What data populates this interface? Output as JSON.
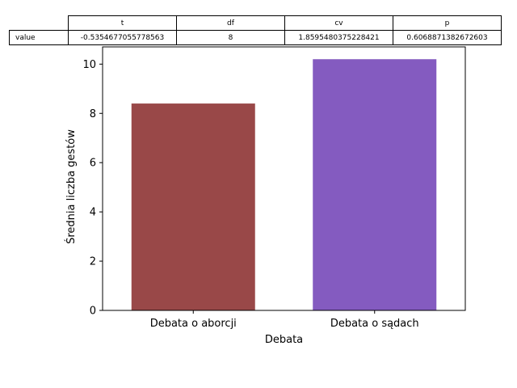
{
  "chart_data": {
    "type": "bar",
    "categories": [
      "Debata o aborcji",
      "Debata o sądach"
    ],
    "values": [
      8.4,
      10.2
    ],
    "colors": [
      "#994848",
      "#845bc0"
    ],
    "xlabel": "Debata",
    "ylabel": "Średnia liczba gestów",
    "ylim": [
      0,
      10.7
    ],
    "yticks": [
      "0",
      "2",
      "4",
      "6",
      "8",
      "10"
    ],
    "grid": false
  },
  "stats_table": {
    "columns": [
      "t",
      "df",
      "cv",
      "p"
    ],
    "row_label": "value",
    "values": [
      "-0.5354677055778563",
      "8",
      "1.8595480375228421",
      "0.6068871382672603"
    ]
  }
}
